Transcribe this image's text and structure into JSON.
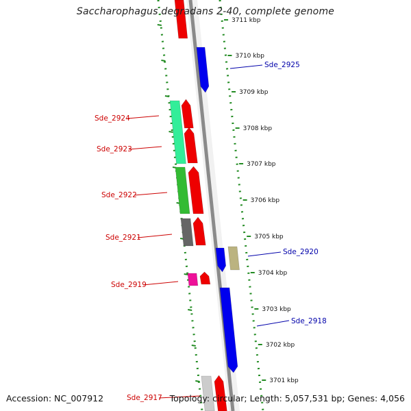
{
  "title": "Saccharophagus degradans 2-40, complete genome",
  "accession": "Accession: NC_007912",
  "topology": "Topology: circular; Length: 5,057,531 bp; Genes: 4,056",
  "colors": {
    "forward_label": "#cc0000",
    "reverse_label": "#0000aa",
    "backbone": "#8a8a8a",
    "scale_dots": "#228b22",
    "tick_text": "#111111"
  },
  "scale_ticks": [
    "3711 kbp",
    "3710 kbp",
    "3709 kbp",
    "3708 kbp",
    "3707 kbp",
    "3706 kbp",
    "3705 kbp",
    "3704 kbp",
    "3703 kbp",
    "3702 kbp",
    "3701 kbp"
  ],
  "gene_labels": [
    {
      "text": "Sde_2925",
      "strand": "reverse"
    },
    {
      "text": "Sde_2924",
      "strand": "forward"
    },
    {
      "text": "Sde_2923",
      "strand": "forward"
    },
    {
      "text": "Sde_2922",
      "strand": "forward"
    },
    {
      "text": "Sde_2921",
      "strand": "forward"
    },
    {
      "text": "Sde_2920",
      "strand": "reverse"
    },
    {
      "text": "Sde_2919",
      "strand": "forward"
    },
    {
      "text": "Sde_2918",
      "strand": "reverse"
    },
    {
      "text": "Sde_2917",
      "strand": "forward"
    }
  ],
  "genes": [
    {
      "name": "gene-top-red",
      "color": "#ee0000",
      "strand": "forward"
    },
    {
      "name": "gene-sde-2925",
      "color": "#0000ee",
      "strand": "reverse"
    },
    {
      "name": "cog-sde-2924",
      "color": "#33ee99",
      "strand": "forward"
    },
    {
      "name": "gene-sde-2924",
      "color": "#ee0000",
      "strand": "forward"
    },
    {
      "name": "gene-sde-2923",
      "color": "#ee0000",
      "strand": "forward"
    },
    {
      "name": "cog-sde-2922",
      "color": "#33bb33",
      "strand": "forward"
    },
    {
      "name": "gene-sde-2922",
      "color": "#ee0000",
      "strand": "forward"
    },
    {
      "name": "cog-sde-2921",
      "color": "#666666",
      "strand": "forward"
    },
    {
      "name": "gene-sde-2921",
      "color": "#ee0000",
      "strand": "forward"
    },
    {
      "name": "gene-sde-2920",
      "color": "#0000ee",
      "strand": "reverse"
    },
    {
      "name": "cog-sde-2920",
      "color": "#bbb380",
      "strand": "reverse"
    },
    {
      "name": "cog-sde-2919",
      "color": "#ee1199",
      "strand": "forward"
    },
    {
      "name": "gene-sde-2919",
      "color": "#ee0000",
      "strand": "forward"
    },
    {
      "name": "gene-sde-2918",
      "color": "#0000ee",
      "strand": "reverse"
    },
    {
      "name": "cog-sde-2917",
      "color": "#cccccc",
      "strand": "forward"
    },
    {
      "name": "gene-sde-2917",
      "color": "#ee0000",
      "strand": "forward"
    }
  ]
}
